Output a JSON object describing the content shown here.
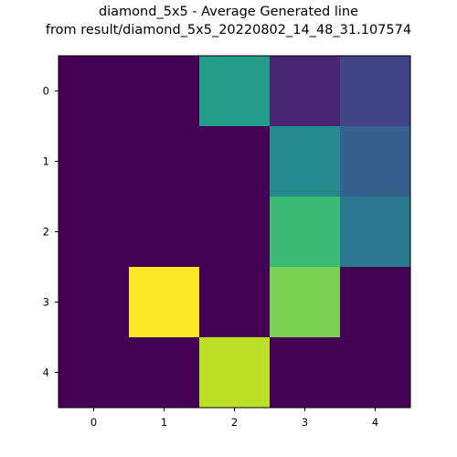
{
  "chart_data": {
    "type": "heatmap",
    "title_lines": [
      "diamond_5x5 - Average Generated line",
      "from result/diamond_5x5_20220802_14_48_31.107574"
    ],
    "rows": [
      "0",
      "1",
      "2",
      "3",
      "4"
    ],
    "cols": [
      "0",
      "1",
      "2",
      "3",
      "4"
    ],
    "values": [
      [
        0.0,
        0.0,
        0.55,
        0.1,
        0.2
      ],
      [
        0.0,
        0.0,
        0.0,
        0.47,
        0.3
      ],
      [
        0.0,
        0.0,
        0.0,
        0.68,
        0.4
      ],
      [
        0.0,
        1.0,
        0.0,
        0.8,
        0.0
      ],
      [
        0.0,
        0.0,
        0.9,
        0.0,
        0.0
      ]
    ],
    "colormap": "viridis",
    "color_range": [
      0,
      1
    ],
    "xlabel": "",
    "ylabel": "",
    "grid": false
  }
}
